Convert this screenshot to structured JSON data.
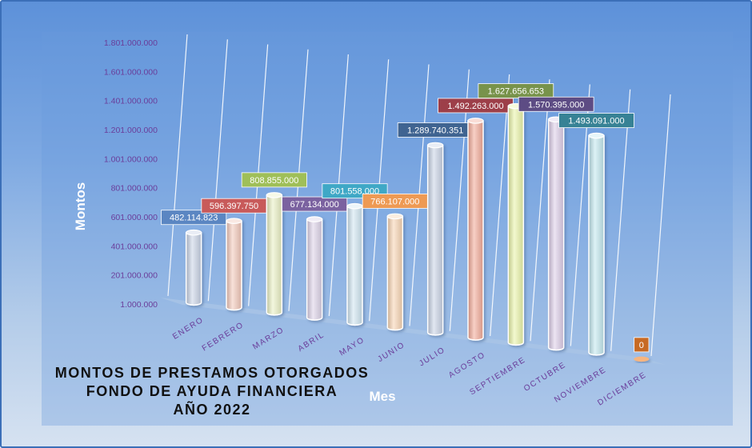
{
  "chart_data": {
    "type": "bar",
    "title": [
      "MONTOS  DE  PRESTAMOS  OTORGADOS",
      "FONDO DE AYUDA  FINANCIERA",
      "AÑO   2022"
    ],
    "xlabel": "Mes",
    "ylabel": "Montos",
    "categories": [
      "ENERO",
      "FEBRERO",
      "MARZO",
      "ABRIL",
      "MAYO",
      "JUNIO",
      "JULIO",
      "AGOSTO",
      "SEPTIEMBRE",
      "OCTUBRE",
      "NOVIEMBRE",
      "DICIEMBRE"
    ],
    "values": [
      482114823,
      596397750,
      808855000,
      677134000,
      801558000,
      766107000,
      1289740351,
      1492263000,
      1627656653,
      1570395000,
      1493091000,
      0
    ],
    "data_labels": [
      "482.114.823",
      "596.397.750",
      "808.855.000",
      "677.134.000",
      "801.558.000",
      "766.107.000",
      "1.289.740.351",
      "1.492.263.000",
      "1.627.656.653",
      "1.570.395.000",
      "1.493.091.000",
      "0"
    ],
    "yticks": [
      1000000,
      201000000,
      401000000,
      601000000,
      801000000,
      1001000000,
      1201000000,
      1401000000,
      1601000000,
      1801000000
    ],
    "ytick_labels": [
      "1.000.000",
      "201.000.000",
      "401.000.000",
      "601.000.000",
      "801.000.000",
      "1.001.000.000",
      "1.201.000.000",
      "1.401.000.000",
      "1.601.000.000",
      "1.801.000.000"
    ],
    "ylim": [
      1000000,
      1801000000
    ],
    "grid": true,
    "legend": "none",
    "colors": [
      "#c9d3e6",
      "#f3c8b9",
      "#eaf0c3",
      "#ddd2e8",
      "#cfe5f1",
      "#f8d4b2",
      "#c9d3e6",
      "#f3aa98",
      "#eaf4a8",
      "#dccde8",
      "#c2e8ef",
      "#f5ad72"
    ],
    "label_colors": [
      "#5b86c2",
      "#c85a5a",
      "#9fbf58",
      "#7b62a0",
      "#3fa8c6",
      "#ee9a54",
      "#406491",
      "#9d3f49",
      "#78934b",
      "#5d4c84",
      "#378295",
      "#c76a24"
    ]
  }
}
